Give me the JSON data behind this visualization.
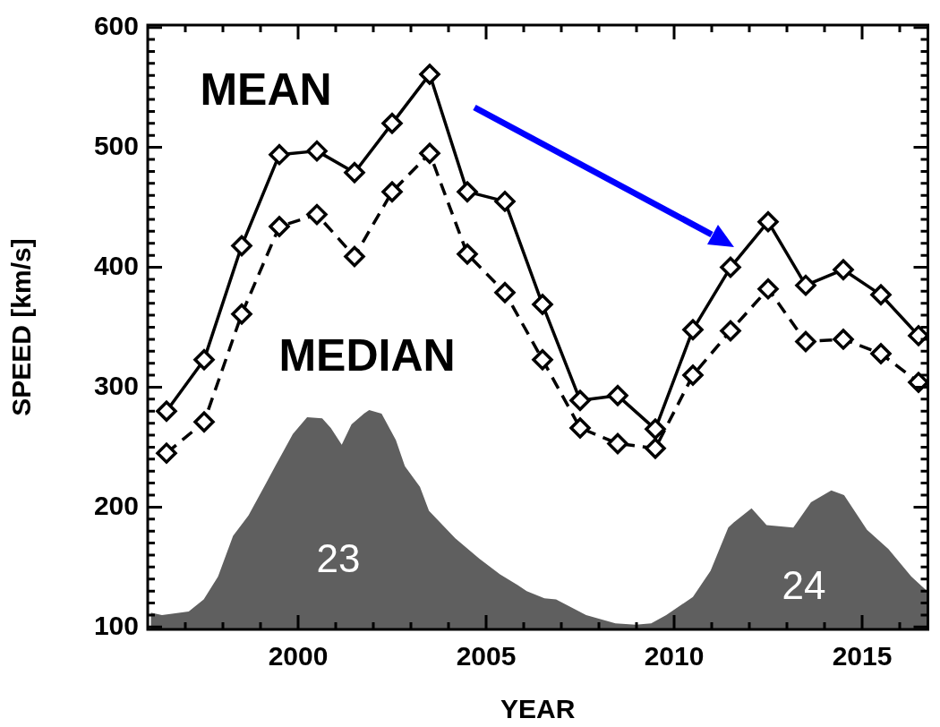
{
  "chart_data": {
    "type": "line",
    "xlabel": "YEAR",
    "ylabel": "SPEED [km/s]",
    "xlim": [
      1996,
      2016.75
    ],
    "ylim": [
      98,
      602
    ],
    "xticks": [
      {
        "value": 1997,
        "label": null
      },
      {
        "value": 1998,
        "label": null
      },
      {
        "value": 1999,
        "label": null
      },
      2000,
      {
        "value": 2001,
        "label": null
      },
      {
        "value": 2002,
        "label": null
      },
      {
        "value": 2003,
        "label": null
      },
      {
        "value": 2004,
        "label": null
      },
      2005,
      {
        "value": 2006,
        "label": null
      },
      {
        "value": 2007,
        "label": null
      },
      {
        "value": 2008,
        "label": null
      },
      {
        "value": 2009,
        "label": null
      },
      2010,
      {
        "value": 2011,
        "label": null
      },
      {
        "value": 2012,
        "label": null
      },
      {
        "value": 2013,
        "label": null
      },
      {
        "value": 2014,
        "label": null
      },
      2015,
      {
        "value": 2016,
        "label": null
      }
    ],
    "yticks": [
      100,
      {
        "value": 110,
        "label": null
      },
      {
        "value": 120,
        "label": null
      },
      {
        "value": 130,
        "label": null
      },
      {
        "value": 140,
        "label": null
      },
      {
        "value": 150,
        "label": null
      },
      {
        "value": 160,
        "label": null
      },
      {
        "value": 170,
        "label": null
      },
      {
        "value": 180,
        "label": null
      },
      {
        "value": 190,
        "label": null
      },
      200,
      {
        "value": 210,
        "label": null
      },
      {
        "value": 220,
        "label": null
      },
      {
        "value": 230,
        "label": null
      },
      {
        "value": 240,
        "label": null
      },
      {
        "value": 250,
        "label": null
      },
      {
        "value": 260,
        "label": null
      },
      {
        "value": 270,
        "label": null
      },
      {
        "value": 280,
        "label": null
      },
      {
        "value": 290,
        "label": null
      },
      300,
      {
        "value": 310,
        "label": null
      },
      {
        "value": 320,
        "label": null
      },
      {
        "value": 330,
        "label": null
      },
      {
        "value": 340,
        "label": null
      },
      {
        "value": 350,
        "label": null
      },
      {
        "value": 360,
        "label": null
      },
      {
        "value": 370,
        "label": null
      },
      {
        "value": 380,
        "label": null
      },
      {
        "value": 390,
        "label": null
      },
      400,
      {
        "value": 410,
        "label": null
      },
      {
        "value": 420,
        "label": null
      },
      {
        "value": 430,
        "label": null
      },
      {
        "value": 440,
        "label": null
      },
      {
        "value": 450,
        "label": null
      },
      {
        "value": 460,
        "label": null
      },
      {
        "value": 470,
        "label": null
      },
      {
        "value": 480,
        "label": null
      },
      {
        "value": 490,
        "label": null
      },
      500,
      {
        "value": 510,
        "label": null
      },
      {
        "value": 520,
        "label": null
      },
      {
        "value": 530,
        "label": null
      },
      {
        "value": 540,
        "label": null
      },
      {
        "value": 550,
        "label": null
      },
      {
        "value": 560,
        "label": null
      },
      {
        "value": 570,
        "label": null
      },
      {
        "value": 580,
        "label": null
      },
      {
        "value": 590,
        "label": null
      },
      600
    ],
    "x": [
      1996.5,
      1997.5,
      1998.5,
      1999.5,
      2000.5,
      2001.5,
      2002.5,
      2003.5,
      2004.5,
      2005.5,
      2006.5,
      2007.5,
      2008.5,
      2009.5,
      2010.5,
      2011.5,
      2012.5,
      2013.5,
      2014.5,
      2015.5,
      2016.5
    ],
    "grid": false,
    "legend": "top left",
    "series": [
      {
        "type": "area",
        "color": "#5f5f5f",
        "x": [
          1996.08,
          1996.38,
          1997.09,
          1997.49,
          1997.87,
          1998.27,
          1998.68,
          1999.15,
          1999.39,
          1999.86,
          2000.24,
          2000.64,
          2000.87,
          2001.16,
          2001.42,
          2001.75,
          2001.89,
          2002.22,
          2002.6,
          2002.84,
          2003.24,
          2003.48,
          2004.18,
          2004.82,
          2005.37,
          2005.84,
          2006.08,
          2006.55,
          2006.86,
          2007.66,
          2008.44,
          2008.98,
          2009.39,
          2009.79,
          2010.5,
          2010.97,
          2011.44,
          2011.58,
          2012.06,
          2012.46,
          2013.17,
          2013.64,
          2014.18,
          2014.52,
          2015.13,
          2015.7,
          2016.31,
          2016.73
        ],
        "values": [
          112,
          110,
          113,
          123,
          142,
          176,
          193,
          220,
          234,
          261,
          275,
          274,
          266,
          252,
          269,
          278,
          281,
          278,
          256,
          234,
          217,
          197,
          174,
          157,
          144,
          135,
          130,
          124,
          123,
          110,
          103,
          102,
          103,
          110,
          125,
          147,
          183,
          187,
          199,
          185,
          183,
          204,
          214,
          210,
          181,
          165,
          142,
          130
        ]
      },
      {
        "name": "MEAN",
        "marker": "diamond",
        "color": "#000000",
        "line_style": "solid",
        "values": [
          280,
          323,
          418,
          494,
          497,
          479,
          520,
          561,
          463,
          455,
          369,
          289,
          293,
          265,
          348,
          400,
          438,
          385,
          398,
          377,
          343
        ]
      },
      {
        "name": "MEDIAN",
        "marker": "diamond",
        "color": "#000000",
        "line_style": "dashed",
        "values": [
          245,
          271,
          361,
          434,
          444,
          409,
          463,
          495,
          411,
          379,
          323,
          266,
          253,
          249,
          310,
          347,
          382,
          338,
          340,
          328,
          304
        ]
      }
    ],
    "annotations": [
      "23",
      "24"
    ]
  }
}
